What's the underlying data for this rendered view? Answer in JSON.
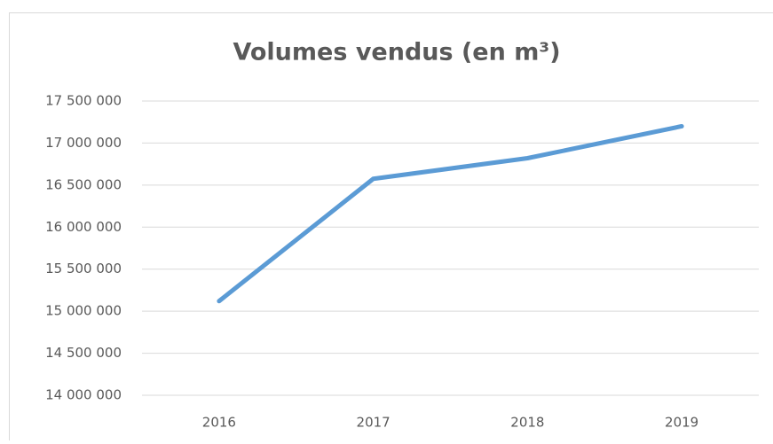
{
  "chart_data": {
    "type": "line",
    "title": "Volumes vendus (en m³)",
    "categories": [
      "2016",
      "2017",
      "2018",
      "2019"
    ],
    "series": [
      {
        "name": "Volumes vendus",
        "color": "#5b9bd5",
        "values": [
          15120000,
          16575000,
          16820000,
          17200000
        ]
      }
    ],
    "ylim": [
      14000000,
      17500000
    ],
    "yticks": [
      {
        "value": 14000000,
        "label": "14 000 000"
      },
      {
        "value": 14500000,
        "label": "14 500 000"
      },
      {
        "value": 15000000,
        "label": "15 000 000"
      },
      {
        "value": 15500000,
        "label": "15 500 000"
      },
      {
        "value": 16000000,
        "label": "16 000 000"
      },
      {
        "value": 16500000,
        "label": "16 500 000"
      },
      {
        "value": 17000000,
        "label": "17 000 000"
      },
      {
        "value": 17500000,
        "label": "17 500 000"
      }
    ],
    "grid": true
  }
}
